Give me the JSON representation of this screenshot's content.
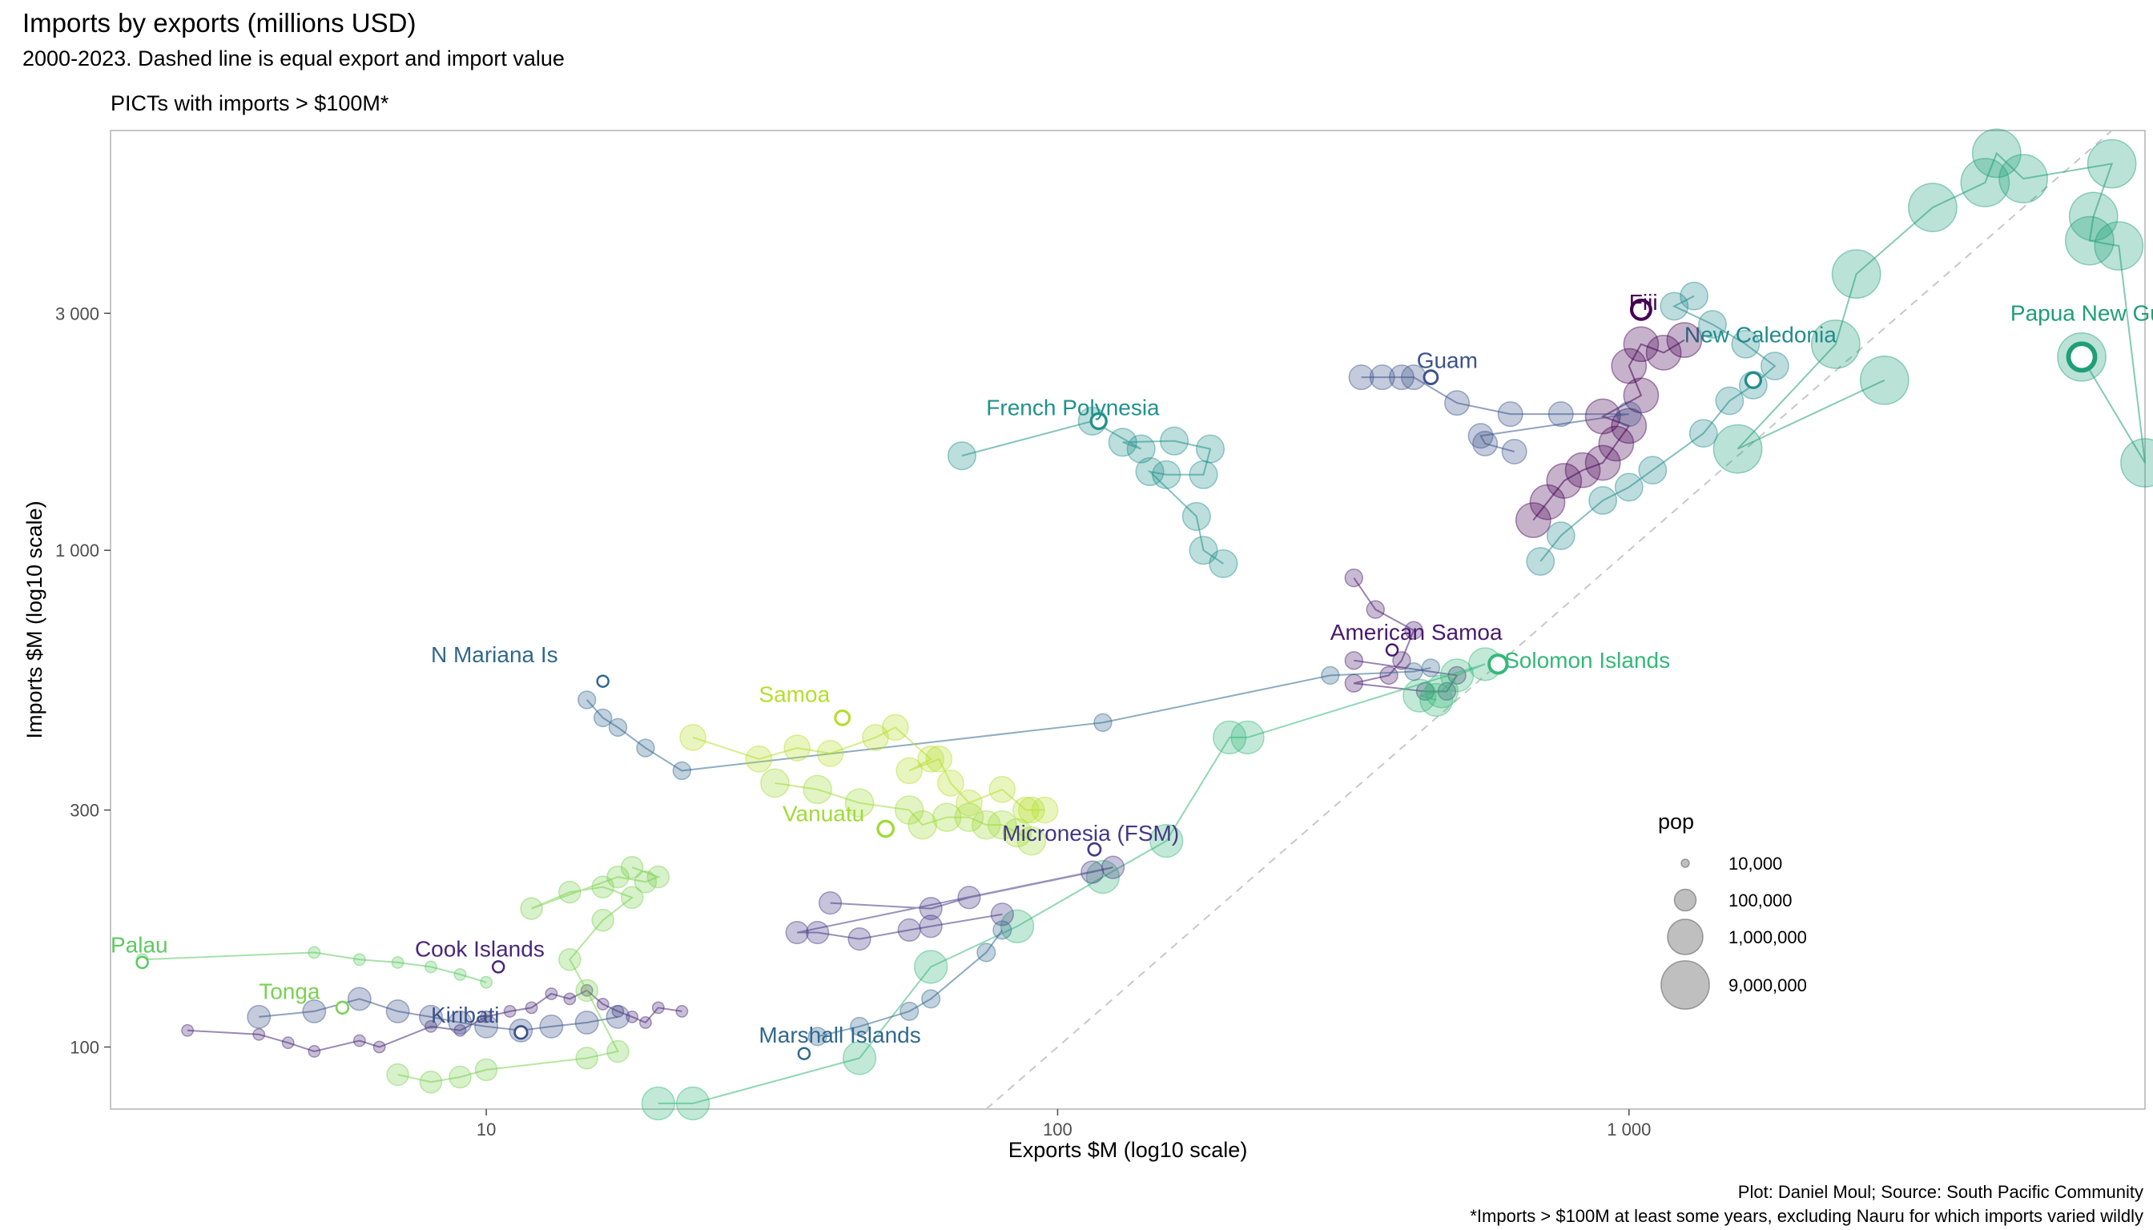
{
  "title": "Imports by exports (millions USD)",
  "subtitle": "2000-2023. Dashed line is equal export and import value",
  "facet_label": "PICTs with imports > $100M*",
  "caption_line1": "Plot: Daniel Moul; Source: South Pacific Community",
  "caption_line2": "*Imports > $100M at least some years, excluding Nauru for which imports varied wildly",
  "chart_data": {
    "type": "scatter",
    "x_scale": "log10",
    "y_scale": "log10",
    "xlabel": "Exports $M (log10 scale)",
    "ylabel": "Imports $M (log10 scale)",
    "xlim": [
      2.2,
      8000
    ],
    "ylim": [
      75,
      7000
    ],
    "x_ticks": [
      {
        "value": 10,
        "label": "10"
      },
      {
        "value": 100,
        "label": "100"
      },
      {
        "value": 1000,
        "label": "1 000"
      }
    ],
    "y_ticks": [
      {
        "value": 100,
        "label": "100"
      },
      {
        "value": 300,
        "label": "300"
      },
      {
        "value": 1000,
        "label": "1 000"
      },
      {
        "value": 3000,
        "label": "3 000"
      }
    ],
    "grid": false,
    "reference_line": "y = x (dashed)",
    "legend": {
      "title": "pop",
      "placement": "right",
      "entries": [
        {
          "label": "10,000",
          "pop": 10000
        },
        {
          "label": "100,000",
          "pop": 100000
        },
        {
          "label": "1,000,000",
          "pop": 1000000
        },
        {
          "label": "9,000,000",
          "pop": 9000000
        }
      ]
    },
    "series": [
      {
        "name": "Papua New Guinea",
        "color": "#1f9e77",
        "pop": 9000000,
        "points": [
          [
            2800,
            2200
          ],
          [
            1550,
            1600
          ],
          [
            2300,
            2600
          ],
          [
            2500,
            3600
          ],
          [
            3400,
            4900
          ],
          [
            4200,
            5500
          ],
          [
            4400,
            6300
          ],
          [
            4900,
            5600
          ],
          [
            7000,
            6000
          ],
          [
            6500,
            4700
          ],
          [
            6400,
            4200
          ],
          [
            7200,
            4100
          ],
          [
            8000,
            1500
          ],
          [
            6200,
            2450
          ]
        ],
        "last": [
          6200,
          2450
        ],
        "label_at": [
          4650,
          2900
        ]
      },
      {
        "name": "New Caledonia",
        "color": "#238a8d",
        "pop": 270000,
        "points": [
          [
            700,
            950
          ],
          [
            760,
            1070
          ],
          [
            900,
            1260
          ],
          [
            1000,
            1340
          ],
          [
            1100,
            1450
          ],
          [
            1350,
            1720
          ],
          [
            1500,
            2000
          ],
          [
            1650,
            2150
          ],
          [
            1800,
            2350
          ],
          [
            1600,
            2600
          ],
          [
            1400,
            2850
          ],
          [
            1200,
            3100
          ],
          [
            1300,
            3250
          ]
        ],
        "last": [
          1650,
          2200
        ],
        "label_at": [
          1250,
          2620
        ]
      },
      {
        "name": "Fiji",
        "color": "#440154",
        "pop": 900000,
        "points": [
          [
            680,
            1150
          ],
          [
            720,
            1250
          ],
          [
            770,
            1380
          ],
          [
            830,
            1450
          ],
          [
            900,
            1500
          ],
          [
            950,
            1640
          ],
          [
            1000,
            1780
          ],
          [
            900,
            1860
          ],
          [
            1050,
            2050
          ],
          [
            1000,
            2350
          ],
          [
            1050,
            2600
          ],
          [
            1150,
            2500
          ],
          [
            1250,
            2650
          ]
        ],
        "last": [
          1050,
          3050
        ],
        "label_at": [
          1000,
          3050
        ]
      },
      {
        "name": "Guam",
        "color": "#3b528b",
        "pop": 160000,
        "points": [
          [
            340,
            2230
          ],
          [
            370,
            2230
          ],
          [
            400,
            2230
          ],
          [
            420,
            2230
          ],
          [
            500,
            1980
          ],
          [
            620,
            1880
          ],
          [
            760,
            1880
          ],
          [
            1000,
            1880
          ],
          [
            550,
            1700
          ],
          [
            560,
            1640
          ],
          [
            630,
            1580
          ]
        ],
        "last": [
          450,
          2230
        ],
        "label_at": [
          425,
          2330
        ]
      },
      {
        "name": "French Polynesia",
        "color": "#21918c",
        "pop": 280000,
        "points": [
          [
            68,
            1550
          ],
          [
            115,
            1820
          ],
          [
            140,
            1600
          ],
          [
            130,
            1650
          ],
          [
            160,
            1660
          ],
          [
            185,
            1600
          ],
          [
            180,
            1420
          ],
          [
            155,
            1420
          ],
          [
            145,
            1440
          ],
          [
            175,
            1170
          ],
          [
            180,
            1000
          ],
          [
            195,
            940
          ]
        ],
        "last": [
          118,
          1820
        ],
        "label_at": [
          75,
          1870
        ]
      },
      {
        "name": "American Samoa",
        "color": "#481a6c",
        "pop": 50000,
        "points": [
          [
            330,
            880
          ],
          [
            360,
            760
          ],
          [
            420,
            690
          ],
          [
            400,
            600
          ],
          [
            380,
            560
          ],
          [
            330,
            540
          ],
          [
            440,
            520
          ],
          [
            480,
            520
          ],
          [
            500,
            560
          ],
          [
            330,
            600
          ]
        ],
        "last": [
          385,
          630
        ],
        "label_at": [
          300,
          660
        ]
      },
      {
        "name": "Solomon Islands",
        "color": "#35b779",
        "pop": 650000,
        "points": [
          [
            460,
            500
          ],
          [
            430,
            510
          ],
          [
            470,
            520
          ],
          [
            500,
            560
          ],
          [
            560,
            590
          ],
          [
            215,
            420
          ],
          [
            200,
            420
          ],
          [
            155,
            260
          ],
          [
            120,
            220
          ],
          [
            85,
            175
          ],
          [
            60,
            145
          ],
          [
            45,
            95
          ],
          [
            23,
            77
          ],
          [
            20,
            77
          ]
        ],
        "last": [
          590,
          590
        ],
        "label_at": [
          605,
          580
        ]
      },
      {
        "name": "N Mariana Is",
        "color": "#31688e",
        "pop": 50000,
        "points": [
          [
            15,
            500
          ],
          [
            16,
            460
          ],
          [
            17,
            440
          ],
          [
            19,
            400
          ],
          [
            22,
            360
          ],
          [
            120,
            450
          ],
          [
            300,
            560
          ],
          [
            420,
            570
          ],
          [
            450,
            580
          ]
        ],
        "last": [
          16,
          545
        ],
        "label_at": [
          8,
          595
        ]
      },
      {
        "name": "Samoa",
        "color": "#b5de2b",
        "pop": 200000,
        "points": [
          [
            23,
            420
          ],
          [
            30,
            380
          ],
          [
            35,
            400
          ],
          [
            40,
            390
          ],
          [
            48,
            420
          ],
          [
            52,
            440
          ],
          [
            60,
            380
          ],
          [
            55,
            360
          ],
          [
            62,
            380
          ],
          [
            65,
            340
          ],
          [
            70,
            310
          ],
          [
            80,
            330
          ],
          [
            88,
            300
          ],
          [
            90,
            300
          ],
          [
            95,
            300
          ]
        ],
        "last": [
          42,
          460
        ],
        "label_at": [
          30,
          495
        ]
      },
      {
        "name": "Vanuatu",
        "color": "#a0da39",
        "pop": 300000,
        "points": [
          [
            32,
            340
          ],
          [
            38,
            330
          ],
          [
            45,
            310
          ],
          [
            55,
            300
          ],
          [
            58,
            280
          ],
          [
            64,
            290
          ],
          [
            70,
            290
          ],
          [
            75,
            280
          ],
          [
            80,
            280
          ],
          [
            85,
            270
          ],
          [
            90,
            260
          ]
        ],
        "last": [
          50,
          275
        ],
        "label_at": [
          33,
          285
        ]
      },
      {
        "name": "Micronesia (FSM)",
        "color": "#443983",
        "pop": 110000,
        "points": [
          [
            40,
            195
          ],
          [
            60,
            190
          ],
          [
            70,
            200
          ],
          [
            115,
            225
          ],
          [
            125,
            230
          ],
          [
            35,
            170
          ],
          [
            38,
            170
          ],
          [
            45,
            165
          ],
          [
            55,
            172
          ],
          [
            60,
            175
          ],
          [
            80,
            185
          ]
        ],
        "last": [
          116,
          250
        ],
        "label_at": [
          80,
          260
        ]
      },
      {
        "name": "Cook Islands",
        "color": "#482878",
        "pop": 18000,
        "points": [
          [
            3,
            108
          ],
          [
            4,
            106
          ],
          [
            4.5,
            102
          ],
          [
            5,
            98
          ],
          [
            6,
            103
          ],
          [
            6.5,
            100
          ],
          [
            8,
            110
          ],
          [
            9,
            108
          ],
          [
            10,
            115
          ],
          [
            11,
            118
          ],
          [
            12,
            120
          ],
          [
            13,
            128
          ],
          [
            14,
            125
          ],
          [
            15,
            130
          ],
          [
            16,
            122
          ],
          [
            17,
            118
          ],
          [
            18,
            115
          ],
          [
            19,
            112
          ],
          [
            20,
            120
          ],
          [
            22,
            118
          ]
        ],
        "last": [
          10.5,
          145
        ],
        "label_at": [
          7.5,
          152
        ]
      },
      {
        "name": "Kiribati",
        "color": "#3b528b",
        "pop": 120000,
        "points": [
          [
            4,
            115
          ],
          [
            5,
            118
          ],
          [
            6,
            125
          ],
          [
            7,
            118
          ],
          [
            8,
            115
          ],
          [
            9,
            112
          ],
          [
            10,
            110
          ],
          [
            11.5,
            108
          ],
          [
            13,
            110
          ],
          [
            15,
            112
          ],
          [
            17,
            115
          ]
        ],
        "last": [
          11.5,
          107
        ],
        "label_at": [
          8,
          112
        ]
      },
      {
        "name": "Tonga",
        "color": "#7ad151",
        "pop": 100000,
        "points": [
          [
            7,
            88
          ],
          [
            8,
            85
          ],
          [
            9,
            87
          ],
          [
            10,
            90
          ],
          [
            15,
            95
          ],
          [
            17,
            98
          ],
          [
            15,
            130
          ],
          [
            14,
            150
          ],
          [
            16,
            180
          ],
          [
            18,
            200
          ],
          [
            16,
            210
          ],
          [
            14,
            205
          ],
          [
            12,
            190
          ],
          [
            17,
            220
          ],
          [
            19,
            215
          ],
          [
            20,
            220
          ],
          [
            18,
            230
          ]
        ],
        "last": [
          5.6,
          120
        ],
        "label_at": [
          4,
          125
        ]
      },
      {
        "name": "Palau",
        "color": "#5ec962",
        "pop": 18000,
        "points": [
          [
            2.5,
            150
          ],
          [
            5,
            155
          ],
          [
            6,
            150
          ],
          [
            7,
            148
          ],
          [
            8,
            145
          ],
          [
            9,
            140
          ],
          [
            10,
            135
          ]
        ],
        "last": [
          2.5,
          148
        ],
        "label_at": [
          2.2,
          155
        ]
      },
      {
        "name": "Marshall Islands",
        "color": "#31688e",
        "pop": 55000,
        "points": [
          [
            38,
            105
          ],
          [
            45,
            110
          ],
          [
            55,
            118
          ],
          [
            60,
            125
          ],
          [
            75,
            155
          ],
          [
            80,
            172
          ]
        ],
        "last": [
          36,
          97
        ],
        "label_at": [
          30,
          102
        ]
      }
    ]
  }
}
